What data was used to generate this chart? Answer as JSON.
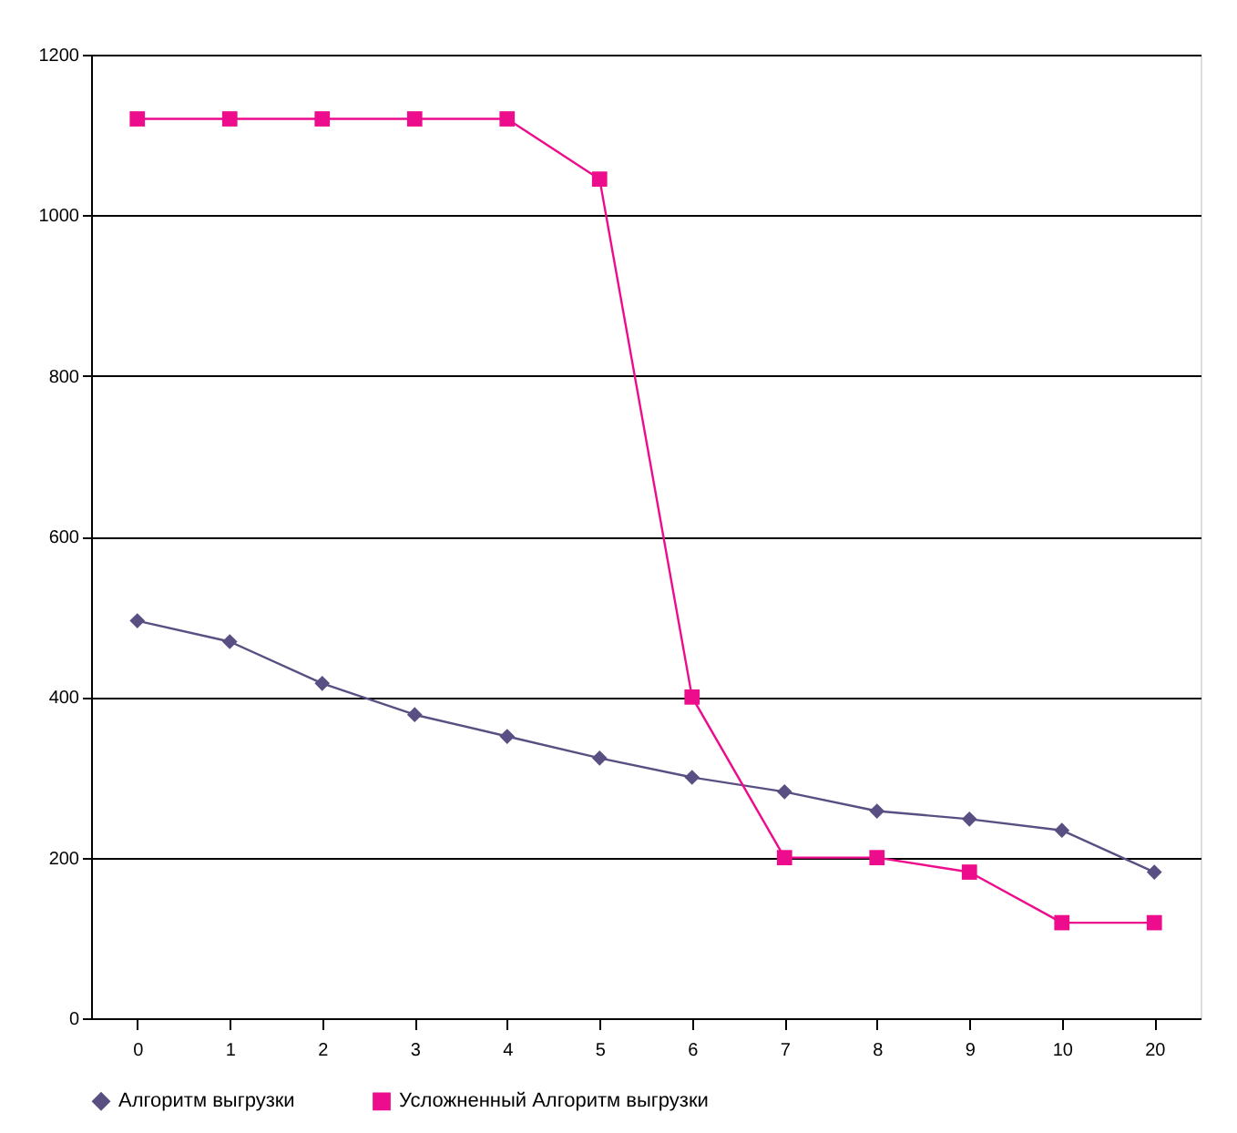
{
  "chart_data": {
    "type": "line",
    "categories": [
      "0",
      "1",
      "2",
      "3",
      "4",
      "5",
      "6",
      "7",
      "8",
      "9",
      "10",
      "20"
    ],
    "series": [
      {
        "name": "Алгоритм выгрузки",
        "color": "#5a4f82",
        "marker": "diamond",
        "values": [
          495,
          469,
          417,
          378,
          351,
          324,
          300,
          282,
          258,
          248,
          234,
          182
        ]
      },
      {
        "name": "Усложненный Алгоритм выгрузки",
        "color": "#ec0c8c",
        "marker": "square",
        "values": [
          1120,
          1120,
          1120,
          1120,
          1120,
          1045,
          400,
          200,
          200,
          182,
          119,
          119
        ]
      }
    ],
    "ylim": [
      0,
      1200
    ],
    "yticks": [
      0,
      200,
      400,
      600,
      800,
      1000,
      1200
    ],
    "grid": "y",
    "legend": "bottom",
    "line_style": "solid"
  }
}
